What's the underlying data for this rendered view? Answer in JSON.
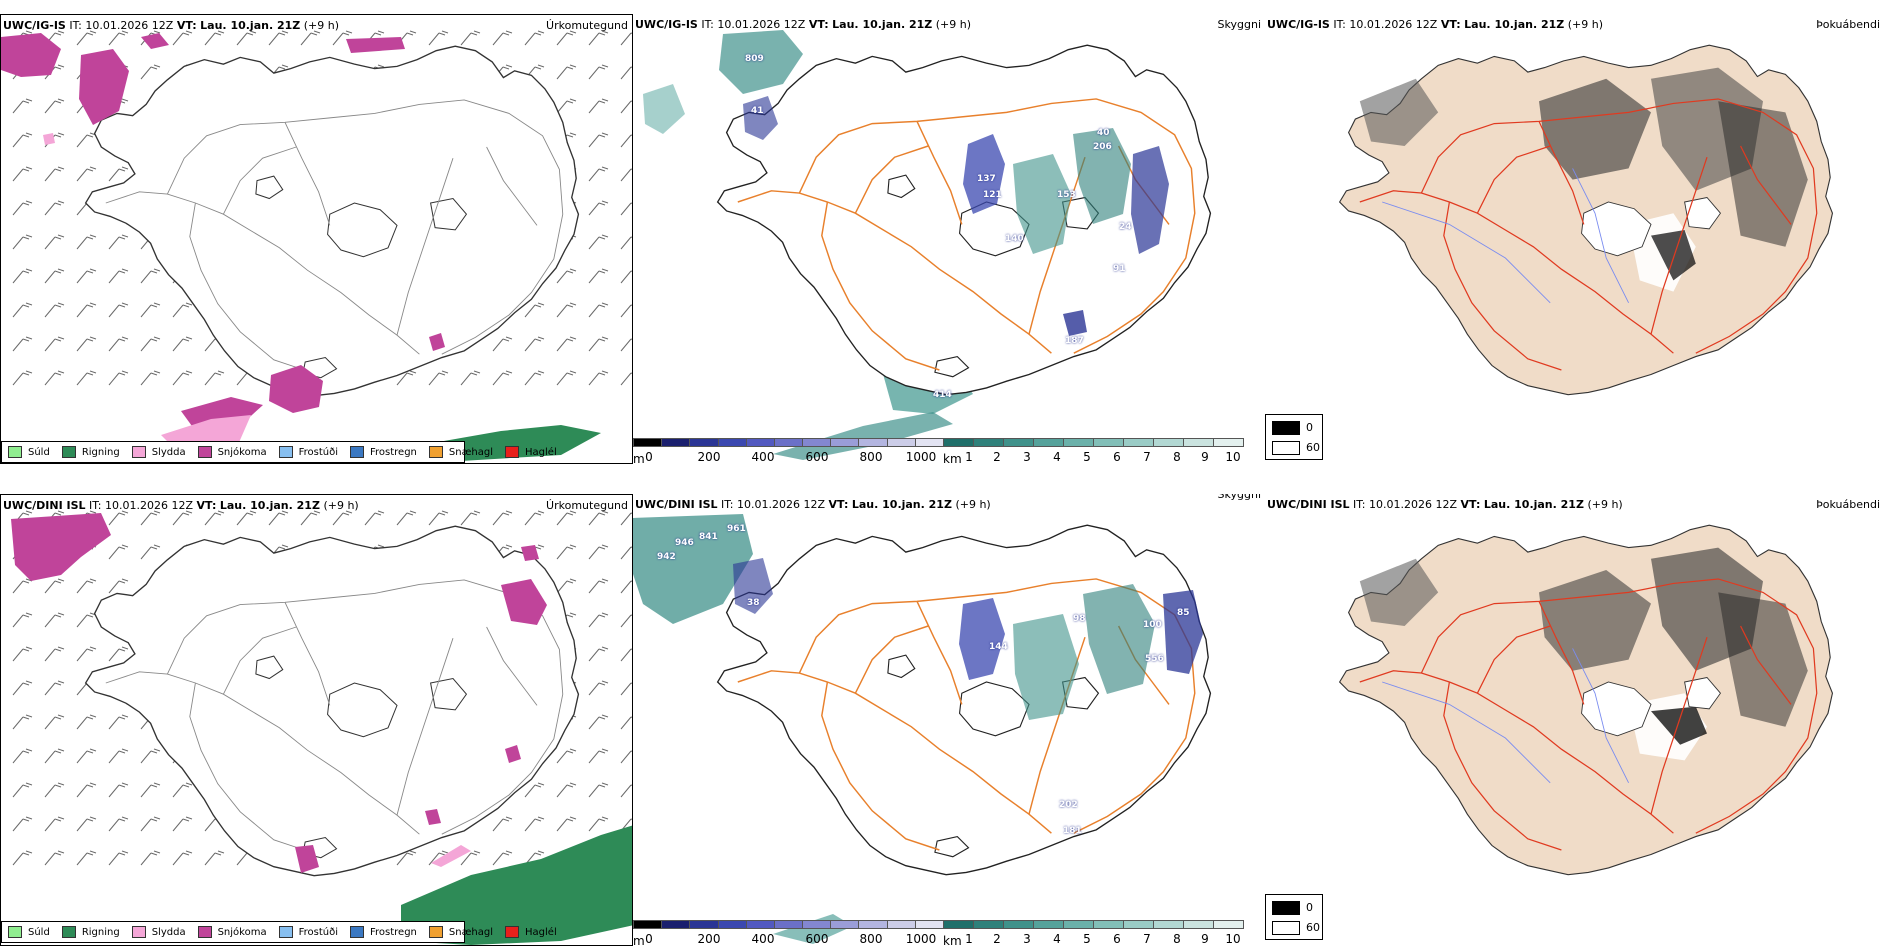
{
  "models": [
    {
      "model": "UWC/IG-IS",
      "it_label": "IT:",
      "it_value": "10.01.2026 12Z",
      "vt_label": "VT:",
      "vt_value": "Lau. 10.jan. 21Z",
      "lead": "(+9 h)"
    },
    {
      "model": "UWC/DINI ISL",
      "it_label": "IT:",
      "it_value": "10.01.2026 12Z",
      "vt_label": "VT:",
      "vt_value": "Lau. 10.jan. 21Z",
      "lead": "(+9 h)"
    }
  ],
  "panel_names": {
    "precip": "Úrkomutegund",
    "cloud": "Skyggni",
    "fog": "Þokuábendi"
  },
  "precip_legend": [
    {
      "label": "Súld",
      "color": "#90ee90"
    },
    {
      "label": "Rigning",
      "color": "#2e8b57"
    },
    {
      "label": "Slydda",
      "color": "#f4a6d7"
    },
    {
      "label": "Snjókoma",
      "color": "#c0449a"
    },
    {
      "label": "Frostúði",
      "color": "#87bff0"
    },
    {
      "label": "Frostregn",
      "color": "#3a78c2"
    },
    {
      "label": "Snæhagl",
      "color": "#f0a030"
    },
    {
      "label": "Haglél",
      "color": "#e8201c"
    }
  ],
  "ceiling_bar": {
    "unit": "m",
    "ticks": [
      "0",
      "200",
      "400",
      "600",
      "800",
      "1000"
    ],
    "colors": [
      "#000000",
      "#1a1f6e",
      "#2a3595",
      "#3b48b0",
      "#5259c0",
      "#6b70c8",
      "#8387d0",
      "#9a9dd8",
      "#b3b5e0",
      "#cccde8",
      "#e2e3f2"
    ]
  },
  "visibility_bar": {
    "unit": "km",
    "ticks": [
      "1",
      "2",
      "3",
      "4",
      "5",
      "6",
      "7",
      "8",
      "9",
      "10"
    ],
    "colors": [
      "#1f6f6a",
      "#2f817b",
      "#40928b",
      "#55a29b",
      "#6bb1aa",
      "#82bfb8",
      "#9accc6",
      "#b2d8d3",
      "#cae3df",
      "#e3f0ee"
    ]
  },
  "fog_legend": [
    {
      "label": "0",
      "color": "#000000"
    },
    {
      "label": "60",
      "color": "#ffffff"
    }
  ],
  "cloud_values": [
    [
      "809",
      "41",
      "137",
      "121",
      "140",
      "153",
      "206",
      "40",
      "24",
      "91",
      "187",
      "414"
    ],
    [
      "946",
      "841",
      "961",
      "942",
      "38",
      "144",
      "98",
      "100",
      "85",
      "556",
      "202",
      "181"
    ]
  ],
  "colors": {
    "coast": "#222222",
    "roads": "#e8802c",
    "roads_red": "#e03a20",
    "land_fog": "#f0dcc8",
    "rivers": "#7a8cf0",
    "wind": "#555555"
  }
}
